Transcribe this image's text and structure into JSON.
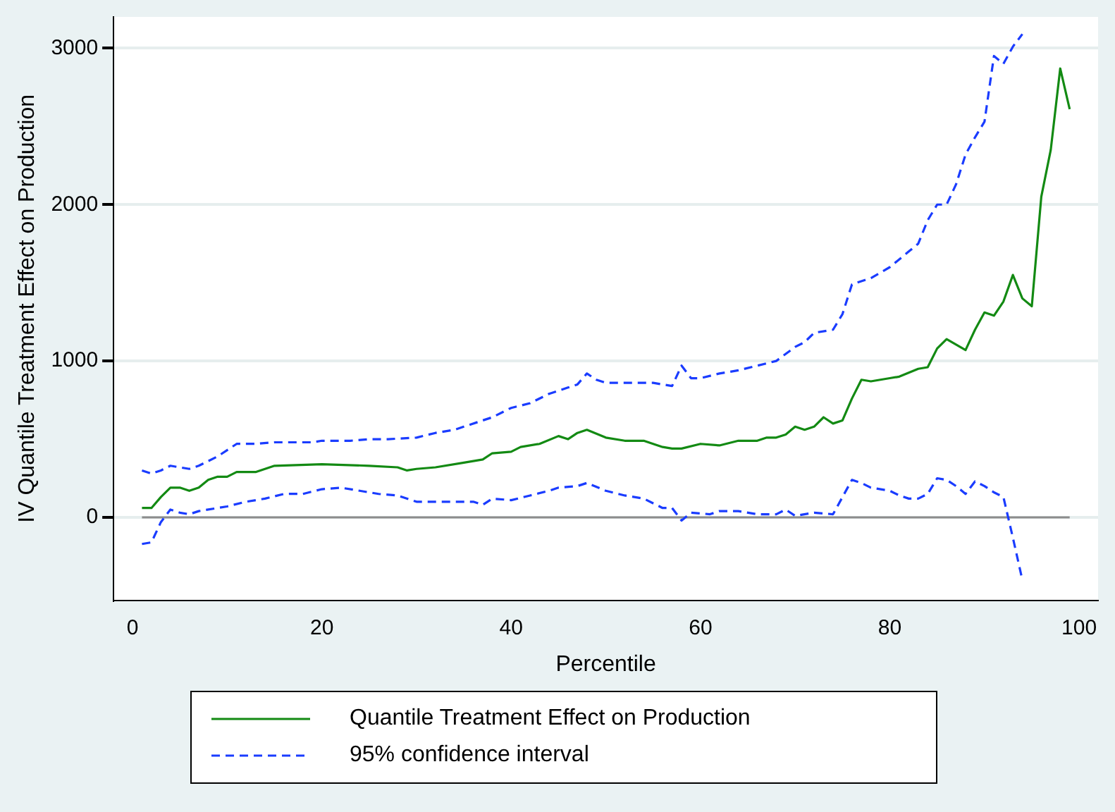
{
  "chart_data": {
    "type": "line",
    "xlabel": "Percentile",
    "ylabel": "IV Quantile Treatment Effect on Production",
    "xlim": [
      -2,
      102
    ],
    "xticks": [
      0,
      20,
      40,
      60,
      80,
      100
    ],
    "ylim": [
      -530,
      3200
    ],
    "yticks": [
      0,
      1000,
      2000,
      3000
    ],
    "grid": "y",
    "legend": "bottom",
    "marker": "none",
    "ref_lines": [
      {
        "axis": "y",
        "value": 0,
        "color": "#8c8c8c"
      }
    ],
    "series": [
      {
        "name": "Quantile Treatment Effect on Production",
        "color": "#138a13",
        "line_style": "solid",
        "x": [
          1,
          2,
          3,
          4,
          5,
          6,
          7,
          8,
          9,
          10,
          11,
          12,
          13,
          14,
          15,
          20,
          25,
          28,
          29,
          30,
          32,
          35,
          37,
          38,
          40,
          41,
          43,
          45,
          46,
          47,
          48,
          50,
          52,
          54,
          56,
          57,
          58,
          60,
          62,
          64,
          66,
          67,
          68,
          69,
          70,
          71,
          72,
          73,
          74,
          75,
          76,
          77,
          78,
          80,
          81,
          83,
          84,
          85,
          86,
          88,
          89,
          90,
          91,
          92,
          93,
          94,
          95,
          96,
          97,
          98,
          99
        ],
        "values": [
          60,
          60,
          130,
          190,
          190,
          170,
          190,
          240,
          260,
          260,
          290,
          290,
          290,
          310,
          330,
          340,
          330,
          320,
          300,
          310,
          320,
          350,
          370,
          410,
          420,
          450,
          470,
          520,
          500,
          540,
          560,
          510,
          490,
          490,
          450,
          440,
          440,
          470,
          460,
          490,
          490,
          510,
          510,
          530,
          580,
          560,
          580,
          640,
          600,
          620,
          760,
          880,
          870,
          890,
          900,
          950,
          960,
          1080,
          1140,
          1070,
          1200,
          1310,
          1290,
          1380,
          1550,
          1400,
          1350,
          2050,
          2350,
          2870,
          2610
        ]
      },
      {
        "name": "95% confidence interval",
        "color": "#1a3cff",
        "line_style": "dashed",
        "x": [
          1,
          2,
          3,
          4,
          5,
          6,
          7,
          8,
          9,
          10,
          11,
          13,
          15,
          17,
          19,
          20,
          23,
          25,
          27,
          30,
          32,
          34,
          35,
          37,
          38,
          40,
          42,
          44,
          46,
          47,
          48,
          49,
          50,
          55,
          57,
          58,
          59,
          60,
          62,
          64,
          66,
          68,
          70,
          71,
          72,
          74,
          75,
          76,
          78,
          80,
          82,
          83,
          84,
          85,
          86,
          87,
          88,
          89,
          90,
          91,
          92,
          93,
          94
        ],
        "values": [
          300,
          280,
          300,
          330,
          320,
          310,
          330,
          360,
          390,
          430,
          470,
          470,
          480,
          480,
          480,
          490,
          490,
          500,
          500,
          510,
          540,
          560,
          580,
          620,
          640,
          700,
          730,
          790,
          830,
          850,
          920,
          880,
          860,
          860,
          840,
          970,
          890,
          890,
          920,
          940,
          970,
          1000,
          1090,
          1120,
          1180,
          1200,
          1300,
          1490,
          1530,
          1600,
          1700,
          1750,
          1900,
          2000,
          2000,
          2130,
          2320,
          2430,
          2530,
          2950,
          2900,
          3010,
          3090
        ]
      },
      {
        "color": "#1a3cff",
        "line_style": "dashed",
        "x": [
          1,
          2,
          3,
          4,
          5,
          6,
          7,
          8,
          9,
          10,
          12,
          14,
          16,
          18,
          20,
          22,
          24,
          26,
          28,
          30,
          32,
          34,
          36,
          37,
          38,
          40,
          42,
          44,
          45,
          47,
          48,
          50,
          52,
          54,
          56,
          57,
          58,
          59,
          61,
          62,
          64,
          66,
          68,
          69,
          70,
          72,
          74,
          75,
          76,
          77,
          78,
          80,
          81,
          82,
          83,
          84,
          85,
          86,
          87,
          88,
          89,
          90,
          91,
          92,
          93,
          94
        ],
        "values": [
          -170,
          -160,
          -30,
          50,
          30,
          20,
          40,
          50,
          60,
          70,
          100,
          120,
          150,
          150,
          180,
          190,
          170,
          150,
          140,
          100,
          100,
          100,
          100,
          80,
          120,
          110,
          140,
          170,
          190,
          200,
          220,
          170,
          140,
          120,
          60,
          60,
          -20,
          30,
          20,
          40,
          40,
          20,
          20,
          50,
          10,
          30,
          20,
          130,
          240,
          220,
          190,
          170,
          140,
          120,
          120,
          150,
          250,
          240,
          200,
          150,
          230,
          200,
          160,
          130,
          -130,
          -400
        ]
      }
    ]
  }
}
